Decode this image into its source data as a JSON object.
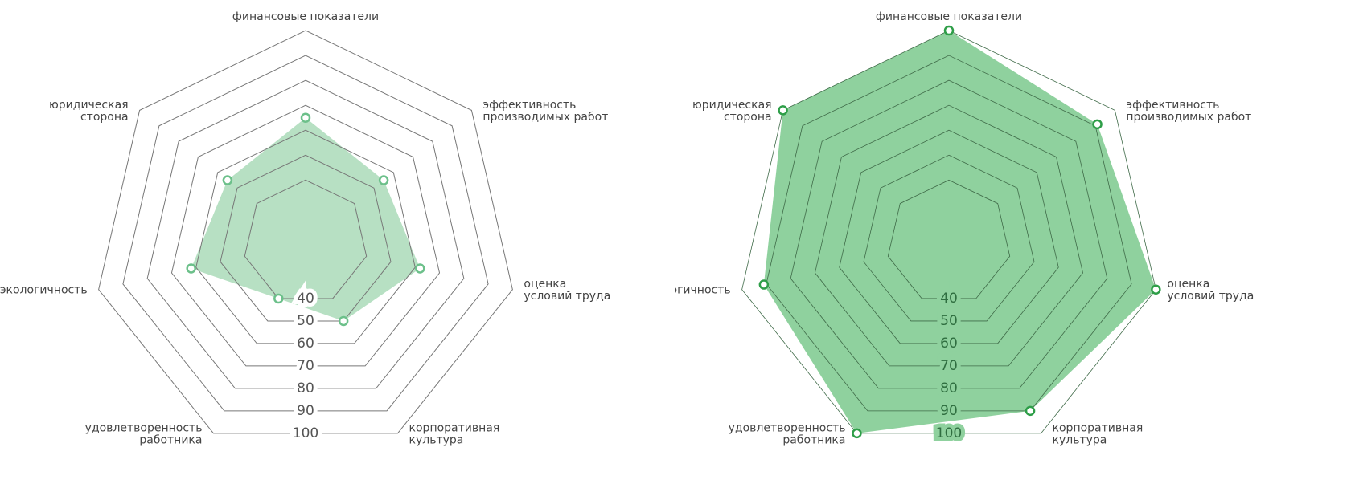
{
  "chart_data": [
    {
      "type": "radar",
      "categories": [
        "финансовые показатели",
        "эффективность\nпроизводимых работ",
        "оценка\nусловий труда",
        "корпоративная\nкультура",
        "удовлетворенность\nработника",
        "экологичность",
        "юридическая\nсторона"
      ],
      "series": [
        {
          "color": "#b7e0c3",
          "values": [
            65,
            55,
            62,
            50,
            40,
            62,
            55
          ]
        }
      ],
      "rlim": [
        15,
        100
      ],
      "rticks": [
        40,
        50,
        60,
        70,
        80,
        90,
        100
      ]
    },
    {
      "type": "radar",
      "categories": [
        "финансовые показатели",
        "эффективность\nпроизводимых работ",
        "оценка\nусловий труда",
        "корпоративная\nкультура",
        "удовлетворенность\nработника",
        "экологичность",
        "юридическая\nсторона"
      ],
      "series": [
        {
          "color": "#8fd19e",
          "values": [
            100,
            91,
            100,
            90,
            100,
            91,
            100
          ]
        }
      ],
      "rlim": [
        15,
        100
      ],
      "rticks": [
        40,
        50,
        60,
        70,
        80,
        90,
        100
      ]
    }
  ]
}
